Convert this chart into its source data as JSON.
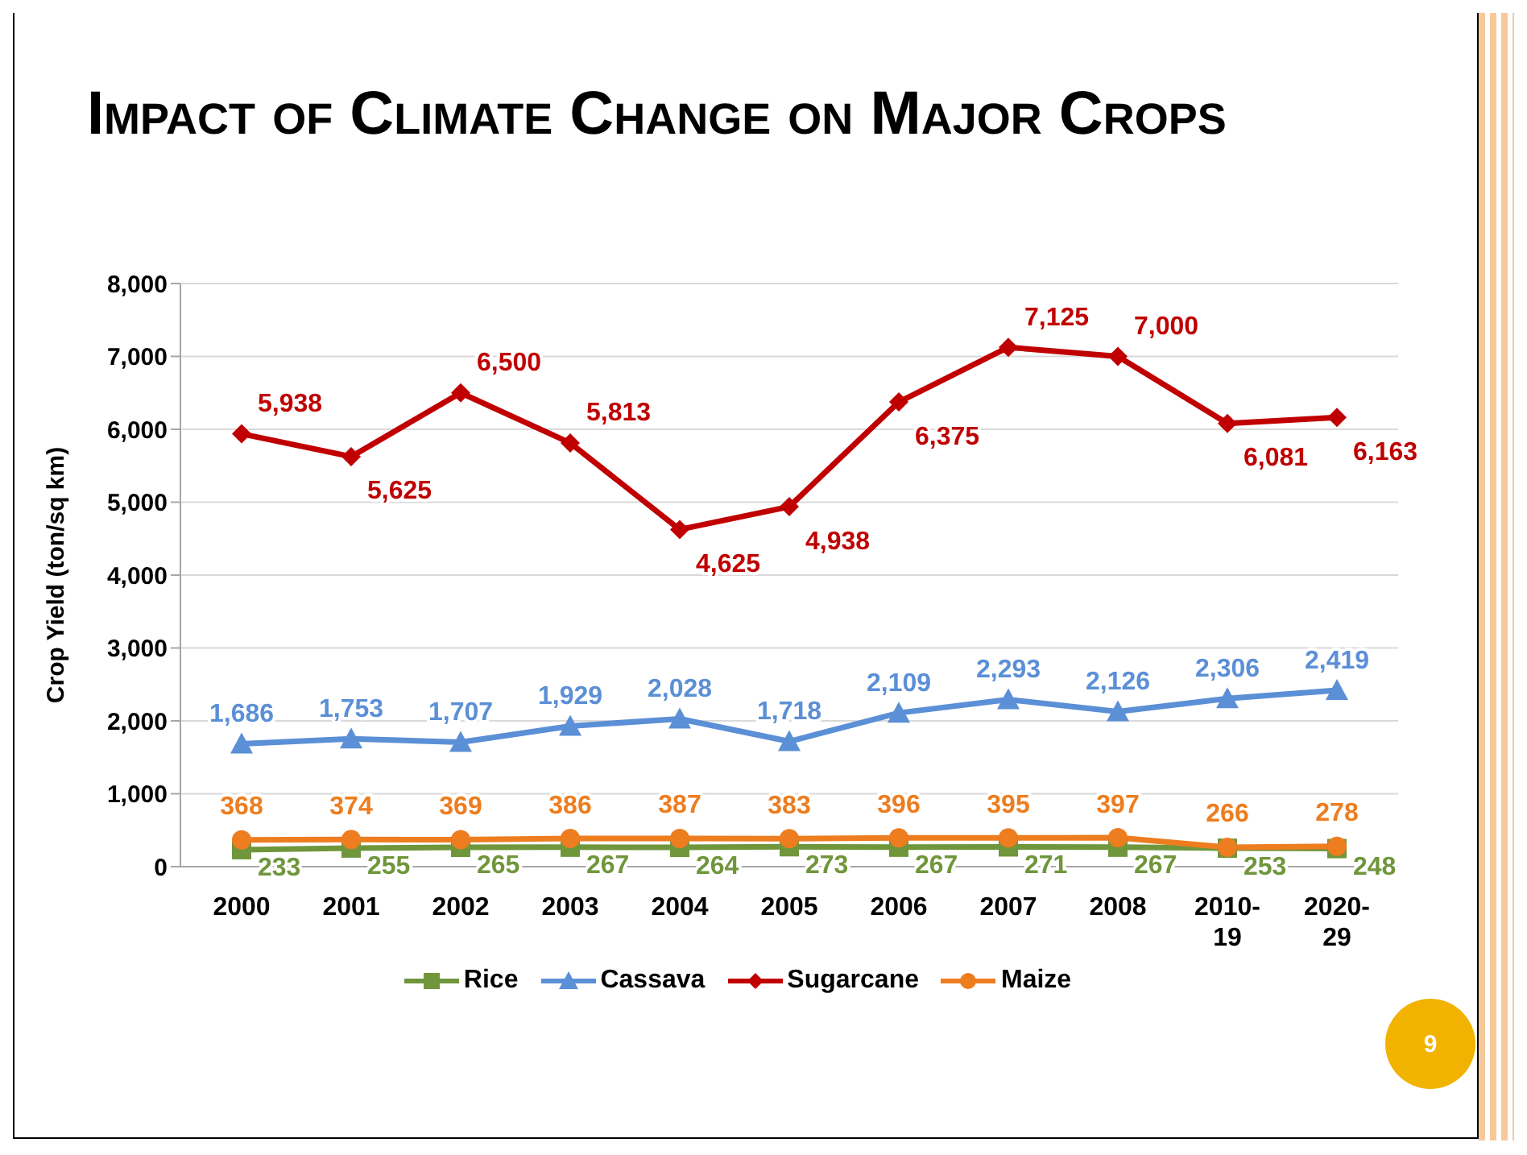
{
  "chart_data": {
    "type": "line",
    "title": "Impact of Climate Change on Major Crops",
    "ylabel": "Crop Yield (ton/sq km)",
    "categories": [
      "2000",
      "2001",
      "2002",
      "2003",
      "2004",
      "2005",
      "2006",
      "2007",
      "2008",
      "2010-19",
      "2020-29"
    ],
    "series": [
      {
        "name": "Rice",
        "color": "#70963c",
        "marker": "square",
        "values": [
          233,
          255,
          265,
          267,
          264,
          273,
          267,
          271,
          267,
          253,
          248
        ],
        "value_labels": [
          "233",
          "255",
          "265",
          "267",
          "264",
          "273",
          "267",
          "271",
          "267",
          "253",
          "248"
        ]
      },
      {
        "name": "Cassava",
        "color": "#5b8fd6",
        "marker": "triangle",
        "values": [
          1686,
          1753,
          1707,
          1929,
          2028,
          1718,
          2109,
          2293,
          2126,
          2306,
          2419
        ],
        "value_labels": [
          "1,686",
          "1,753",
          "1,707",
          "1,929",
          "2,028",
          "1,718",
          "2,109",
          "2,293",
          "2,126",
          "2,306",
          "2,419"
        ]
      },
      {
        "name": "Sugarcane",
        "color": "#c00000",
        "marker": "diamond",
        "values": [
          5938,
          5625,
          6500,
          5813,
          4625,
          4938,
          6375,
          7125,
          7000,
          6081,
          6163
        ],
        "value_labels": [
          "5,938",
          "5,625",
          "6,500",
          "5,813",
          "4,625",
          "4,938",
          "6,375",
          "7,125",
          "7,000",
          "6,081",
          "6,163"
        ]
      },
      {
        "name": "Maize",
        "color": "#ed7d1f",
        "marker": "circle",
        "values": [
          368,
          374,
          369,
          386,
          387,
          383,
          396,
          395,
          397,
          266,
          278
        ],
        "value_labels": [
          "368",
          "374",
          "369",
          "386",
          "387",
          "383",
          "396",
          "395",
          "397",
          "266",
          "278"
        ]
      }
    ],
    "ylim": [
      0,
      8000
    ],
    "yticks": [
      0,
      {
        "value": 1000,
        "label": "1,000"
      },
      {
        "value": 2000,
        "label": "2,000"
      },
      {
        "value": 3000,
        "label": "3,000"
      },
      {
        "value": 4000,
        "label": "4,000"
      },
      {
        "value": 5000,
        "label": "5,000"
      },
      {
        "value": 6000,
        "label": "6,000"
      },
      {
        "value": 7000,
        "label": "7,000"
      },
      {
        "value": 8000,
        "label": "8,000"
      }
    ],
    "grid": "y",
    "legend": "bottom",
    "annotations": [
      "9"
    ]
  }
}
